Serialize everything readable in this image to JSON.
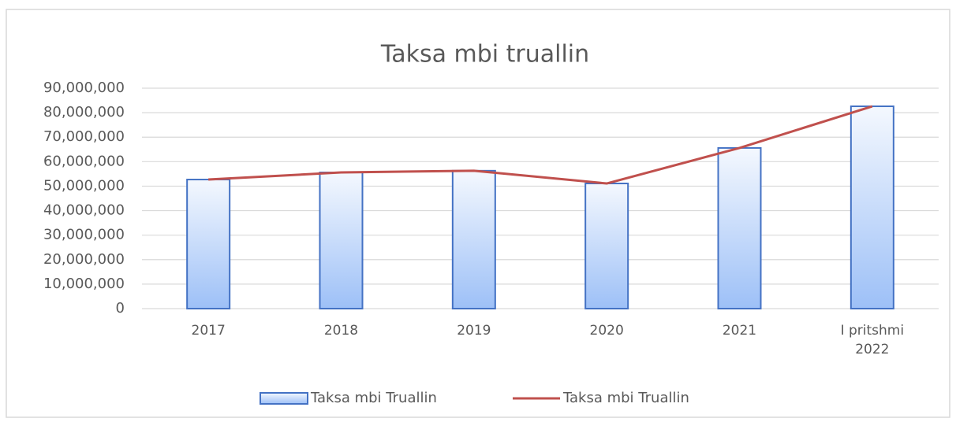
{
  "chart_data": {
    "type": "bar",
    "title": "Taksa mbi truallin",
    "categories": [
      "2017",
      "2018",
      "2019",
      "2020",
      "2021",
      "I pritshmi 2022"
    ],
    "series": [
      {
        "name": "Taksa mbi Truallin",
        "type": "bar",
        "color": "#4472c4",
        "values": [
          52700000,
          55600000,
          56300000,
          51100000,
          65600000,
          82600000
        ]
      },
      {
        "name": "Taksa mbi Truallin",
        "type": "line",
        "color": "#c0504d",
        "values": [
          52700000,
          55600000,
          56300000,
          51100000,
          65600000,
          82600000
        ]
      }
    ],
    "ylim": [
      0,
      90000000
    ],
    "yticks": [
      0,
      {
        "value": 10000000,
        "label": "10,000,000"
      },
      {
        "value": 20000000,
        "label": "20,000,000"
      },
      {
        "value": 30000000,
        "label": "30,000,000"
      },
      {
        "value": 40000000,
        "label": "40,000,000"
      },
      {
        "value": 50000000,
        "label": "50,000,000"
      },
      {
        "value": 60000000,
        "label": "60,000,000"
      },
      {
        "value": 70000000,
        "label": "70,000,000"
      },
      {
        "value": 80000000,
        "label": "80,000,000"
      },
      {
        "value": 90000000,
        "label": "90,000,000"
      }
    ],
    "grid": true,
    "legend": "bottom"
  }
}
